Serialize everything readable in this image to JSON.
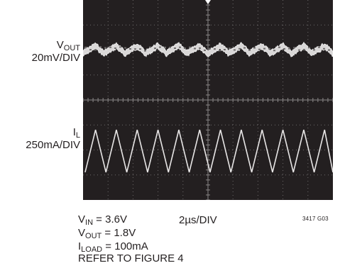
{
  "chart_data": {
    "type": "line",
    "divisions": {
      "x": 10,
      "y": 8
    },
    "channels": [
      {
        "label_main": "V",
        "label_sub": "OUT",
        "scale": "20mV/DIV",
        "waveform": "output ripple",
        "ripple_cycles": 12,
        "ripple_amplitude_div": 0.3
      },
      {
        "label_main": "I",
        "label_sub": "L",
        "scale": "250mA/DIV",
        "waveform": "triangle",
        "cycles": 12,
        "peak_to_peak_div": 1.7
      }
    ],
    "timebase": "2µs/DIV",
    "figure_code": "3417 G03",
    "conditions": [
      {
        "main": "V",
        "sub": "IN",
        "rest": " = 3.6V"
      },
      {
        "main": "V",
        "sub": "OUT",
        "rest": " = 1.8V"
      },
      {
        "main": "I",
        "sub": "LOAD",
        "rest": " = 100mA"
      },
      {
        "main": "",
        "sub": "",
        "rest": "REFER TO FIGURE 4"
      }
    ]
  }
}
